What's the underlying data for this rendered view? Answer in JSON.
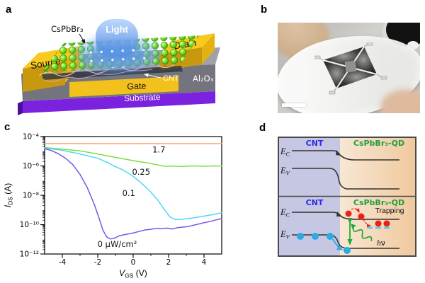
{
  "panels": {
    "a": {
      "letter": "a",
      "labels": {
        "material": "CsPbBr₃",
        "light": "Light",
        "source": "Source",
        "drain": "Drain",
        "cnt": "CNT",
        "oxide": "Al₂O₃",
        "gate": "Gate",
        "substrate": "Substrate"
      },
      "colors": {
        "electrode": "#f8c91e",
        "electrode_front": "#c8990e",
        "slab_top": "#a0a1aa",
        "slab_front": "#74747e",
        "substrate": "#7b22de",
        "qd_green": "#79e52c",
        "beam_blue": "#3c7ce2",
        "cnt_pink": "#ecc2df"
      }
    },
    "b": {
      "letter": "b"
    },
    "c": {
      "letter": "c"
    },
    "d": {
      "letter": "d",
      "cnt_label": "CNT",
      "qd_label": "CsPbBr₃-QD",
      "ec_main": "E",
      "ec_sub": "C",
      "ev_main": "E",
      "ev_sub": "V",
      "trapping": "Trapping",
      "photon_main": "h",
      "photon_sub": "ν",
      "colors": {
        "cnt_bg": "#c6c7e3",
        "qd_bg_left": "#f8e7d3",
        "qd_bg_right": "#f0c99e",
        "cnt_text": "#2b2be8",
        "qd_text": "#1f9e42",
        "electron_red": "#e8211a",
        "hole_blue": "#2aabe4",
        "arrow_green": "#22a73b",
        "trap_dash_cyan": "#5bc8f5"
      }
    }
  },
  "chart_data": {
    "type": "line",
    "title": "",
    "xlabel": {
      "main": "V",
      "sub": "GS",
      "unit": " (V)"
    },
    "ylabel": {
      "main": "I",
      "sub": "DS",
      "unit": " (A)"
    },
    "xlim": [
      -5,
      5
    ],
    "ylim": [
      1e-12,
      0.0001
    ],
    "log_y": true,
    "grid": false,
    "legend": "inline-annotations",
    "x_ticks": [
      -4,
      -2,
      0,
      2,
      4
    ],
    "x_minor_ticks": [
      -3,
      -1,
      1,
      3
    ],
    "y_ticks": [
      {
        "exp": -4,
        "label": "10⁻⁴"
      },
      {
        "exp": -6,
        "label": "10⁻⁶"
      },
      {
        "exp": -8,
        "label": "10⁻⁸"
      },
      {
        "exp": -10,
        "label": "10⁻¹⁰"
      },
      {
        "exp": -12,
        "label": "10⁻¹²"
      }
    ],
    "series": [
      {
        "name": "1.7",
        "unit": "μW/cm²",
        "color": "#F9A26C",
        "points": [
          [
            -5,
            3.3e-05
          ],
          [
            -3,
            3.3e-05
          ],
          [
            -1,
            3.25e-05
          ],
          [
            1,
            3.3e-05
          ],
          [
            3,
            3.25e-05
          ],
          [
            5,
            3.3e-05
          ]
        ]
      },
      {
        "name": "0.25",
        "unit": "μW/cm²",
        "color": "#7FDC48",
        "points": [
          [
            -5,
            1.8e-05
          ],
          [
            -4,
            1.4e-05
          ],
          [
            -3,
            1.05e-05
          ],
          [
            -2,
            6.5e-06
          ],
          [
            -1,
            3.8e-06
          ],
          [
            0,
            2.3e-06
          ],
          [
            0.8,
            1.6e-06
          ],
          [
            1.4,
            1.15e-06
          ],
          [
            1.8,
            9.5e-07
          ],
          [
            2.2,
            9.8e-07
          ],
          [
            2.8,
            9.2e-07
          ],
          [
            3.4,
            1e-06
          ],
          [
            4,
            9.4e-07
          ],
          [
            4.6,
            1e-06
          ],
          [
            5,
            9.7e-07
          ]
        ]
      },
      {
        "name": "0.1",
        "unit": "μW/cm²",
        "color": "#4ED9F2",
        "points": [
          [
            -5,
            1.7e-05
          ],
          [
            -4,
            1.15e-05
          ],
          [
            -3,
            6.5e-06
          ],
          [
            -2,
            3.3e-06
          ],
          [
            -1.4,
            1.6e-06
          ],
          [
            -1.1,
            1e-06
          ],
          [
            -0.6,
            5.5e-07
          ],
          [
            -0.1,
            2.4e-07
          ],
          [
            0.4,
            8e-08
          ],
          [
            0.9,
            2.2e-08
          ],
          [
            1.4,
            4.5e-09
          ],
          [
            1.8,
            9e-10
          ],
          [
            2.1,
            3.2e-10
          ],
          [
            2.4,
            2.2e-10
          ],
          [
            2.9,
            2.4e-10
          ],
          [
            3.4,
            2.9e-10
          ],
          [
            4,
            3.8e-10
          ],
          [
            4.5,
            4.8e-10
          ],
          [
            5,
            6.5e-10
          ]
        ]
      },
      {
        "name": "0",
        "unit": "μW/cm²",
        "color": "#7A55E6",
        "points": [
          [
            -5,
            1.5e-05
          ],
          [
            -4.6,
            1.1e-05
          ],
          [
            -4.2,
            6.5e-06
          ],
          [
            -3.8,
            3.2e-06
          ],
          [
            -3.4,
            1.2e-06
          ],
          [
            -3,
            2.6e-07
          ],
          [
            -2.6,
            3.5e-08
          ],
          [
            -2.2,
            2.5e-09
          ],
          [
            -1.9,
            2.2e-10
          ],
          [
            -1.7,
            4e-11
          ],
          [
            -1.5,
            1.5e-11
          ],
          [
            -1.3,
            1.05e-11
          ],
          [
            -1.05,
            1.2e-11
          ],
          [
            -0.8,
            1.7e-11
          ],
          [
            -0.5,
            2.1e-11
          ],
          [
            -0.2,
            2.4e-11
          ],
          [
            0.1,
            2.9e-11
          ],
          [
            0.4,
            3.6e-11
          ],
          [
            0.7,
            4.4e-11
          ],
          [
            1,
            4.8e-11
          ],
          [
            1.3,
            5.6e-11
          ],
          [
            1.6,
            5.2e-11
          ],
          [
            1.9,
            5.8e-11
          ],
          [
            2.2,
            5.1e-11
          ],
          [
            2.5,
            6.2e-11
          ],
          [
            2.8,
            6.8e-11
          ],
          [
            3.1,
            7.4e-11
          ],
          [
            3.4,
            9e-11
          ],
          [
            3.7,
            1.1e-10
          ],
          [
            4,
            1.35e-10
          ],
          [
            4.3,
            1.6e-10
          ],
          [
            4.6,
            2e-10
          ],
          [
            5,
            2.6e-10
          ]
        ]
      }
    ],
    "annotations": [
      {
        "text": "1.7",
        "v": 1.45,
        "i": 1.3e-05
      },
      {
        "text": "0.25",
        "v": 0.45,
        "i": 4e-07
      },
      {
        "text": "0.1",
        "v": -0.25,
        "i": 1.4e-08
      },
      {
        "text": "0 μW/cm²",
        "v": -0.9,
        "i": 4.7e-12
      }
    ]
  }
}
